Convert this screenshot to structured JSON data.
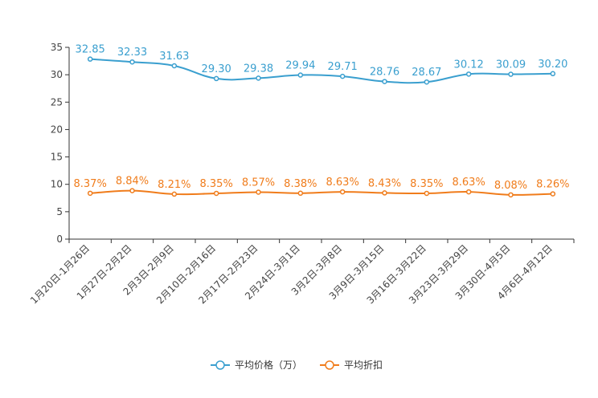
{
  "chart_data": {
    "type": "line",
    "title": "",
    "xlabel": "",
    "ylabel": "",
    "ylim": [
      0,
      35
    ],
    "yticks": [
      0,
      5,
      10,
      15,
      20,
      25,
      30,
      35
    ],
    "grid": false,
    "legend_position": "bottom-center",
    "categories": [
      "1月20日-1月26日",
      "1月27日-2月2日",
      "2月3日-2月9日",
      "2月10日-2月16日",
      "2月17日-2月23日",
      "2月24日-3月1日",
      "3月2日-3月8日",
      "3月9日-3月15日",
      "3月16日-3月22日",
      "3月23日-3月29日",
      "3月30日-4月5日",
      "4月6日-4月12日"
    ],
    "series": [
      {
        "name": "平均价格（万）",
        "color": "#3a9fcf",
        "values": [
          32.85,
          32.33,
          31.63,
          29.3,
          29.38,
          29.94,
          29.71,
          28.76,
          28.67,
          30.12,
          30.09,
          30.2
        ],
        "labels": [
          "32.85",
          "32.33",
          "31.63",
          "29.30",
          "29.38",
          "29.94",
          "29.71",
          "28.76",
          "28.67",
          "30.12",
          "30.09",
          "30.20"
        ]
      },
      {
        "name": "平均折扣",
        "color": "#f07c1b",
        "values": [
          8.37,
          8.84,
          8.21,
          8.35,
          8.57,
          8.38,
          8.63,
          8.43,
          8.35,
          8.63,
          8.08,
          8.26
        ],
        "labels": [
          "8.37%",
          "8.84%",
          "8.21%",
          "8.35%",
          "8.57%",
          "8.38%",
          "8.63%",
          "8.43%",
          "8.35%",
          "8.63%",
          "8.08%",
          "8.26%"
        ]
      }
    ]
  }
}
